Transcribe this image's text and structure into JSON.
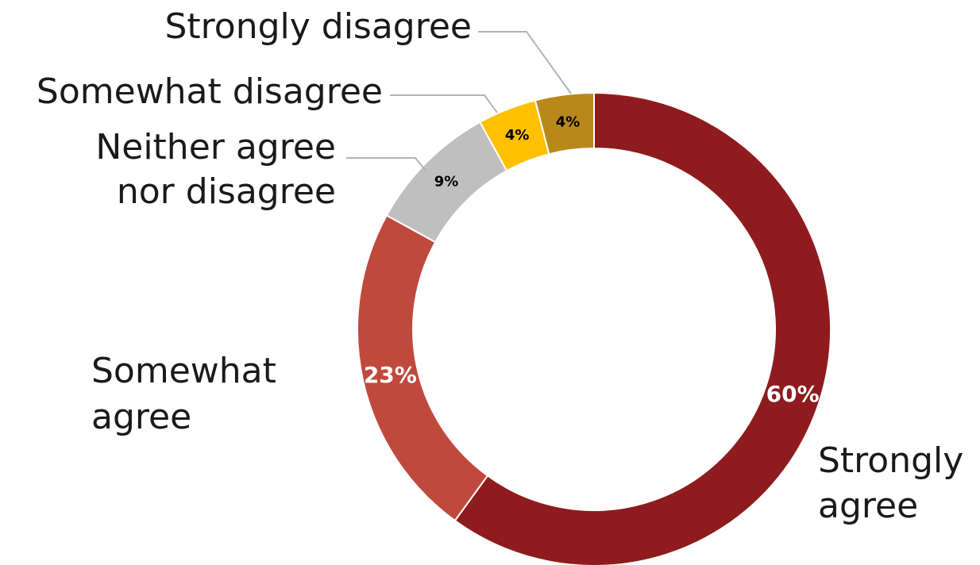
{
  "chart_data": {
    "type": "pie",
    "variant": "donut",
    "slices": [
      {
        "label": "Strongly agree",
        "label_lines": [
          "Strongly",
          "agree"
        ],
        "value": 60,
        "display": "60%",
        "color": "#8E1B1D",
        "text_color": "#ffffff"
      },
      {
        "label": "Somewhat agree",
        "label_lines": [
          "Somewhat",
          "agree"
        ],
        "value": 23,
        "display": "23%",
        "color": "#C0493E",
        "text_color": "#ffffff"
      },
      {
        "label": "Neither agree nor disagree",
        "label_lines": [
          "Neither agree",
          "nor disagree"
        ],
        "value": 9,
        "display": "9%",
        "color": "#BFBFBF",
        "text_color": "#000000"
      },
      {
        "label": "Somewhat disagree",
        "label_lines": [
          "Somewhat disagree"
        ],
        "value": 4,
        "display": "4%",
        "color": "#FFC000",
        "text_color": "#000000"
      },
      {
        "label": "Strongly disagree",
        "label_lines": [
          "Strongly disagree"
        ],
        "value": 4,
        "display": "4%",
        "color": "#B8891A",
        "text_color": "#000000"
      }
    ],
    "start": "12 o'clock",
    "direction": "clockwise",
    "legend": "none"
  }
}
